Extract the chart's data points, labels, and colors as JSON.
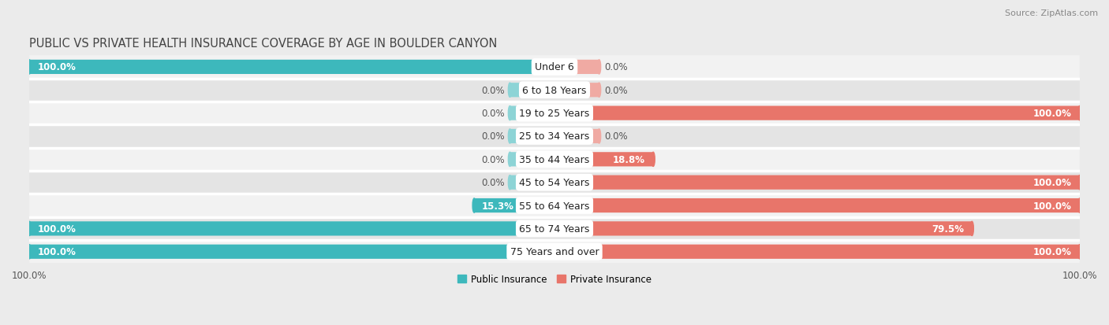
{
  "title": "PUBLIC VS PRIVATE HEALTH INSURANCE COVERAGE BY AGE IN BOULDER CANYON",
  "source": "Source: ZipAtlas.com",
  "categories": [
    "Under 6",
    "6 to 18 Years",
    "19 to 25 Years",
    "25 to 34 Years",
    "35 to 44 Years",
    "45 to 54 Years",
    "55 to 64 Years",
    "65 to 74 Years",
    "75 Years and over"
  ],
  "public_values": [
    100.0,
    0.0,
    0.0,
    0.0,
    0.0,
    0.0,
    15.3,
    100.0,
    100.0
  ],
  "private_values": [
    0.0,
    0.0,
    100.0,
    0.0,
    18.8,
    100.0,
    100.0,
    79.5,
    100.0
  ],
  "public_color": "#3db8bc",
  "private_color": "#e8756a",
  "public_stub_color": "#8dd4d6",
  "private_stub_color": "#f0aaa3",
  "bar_height": 0.62,
  "bg_color": "#ebebeb",
  "row_bg_light": "#f2f2f2",
  "row_bg_dark": "#e4e4e4",
  "divider_color": "#ffffff",
  "xlim_left": -100,
  "xlim_right": 100,
  "stub_size": 8.5,
  "title_fontsize": 10.5,
  "source_fontsize": 8,
  "label_fontsize": 8.5,
  "tick_fontsize": 8.5,
  "category_fontsize": 9,
  "text_dark": "#555555",
  "text_white": "#ffffff"
}
